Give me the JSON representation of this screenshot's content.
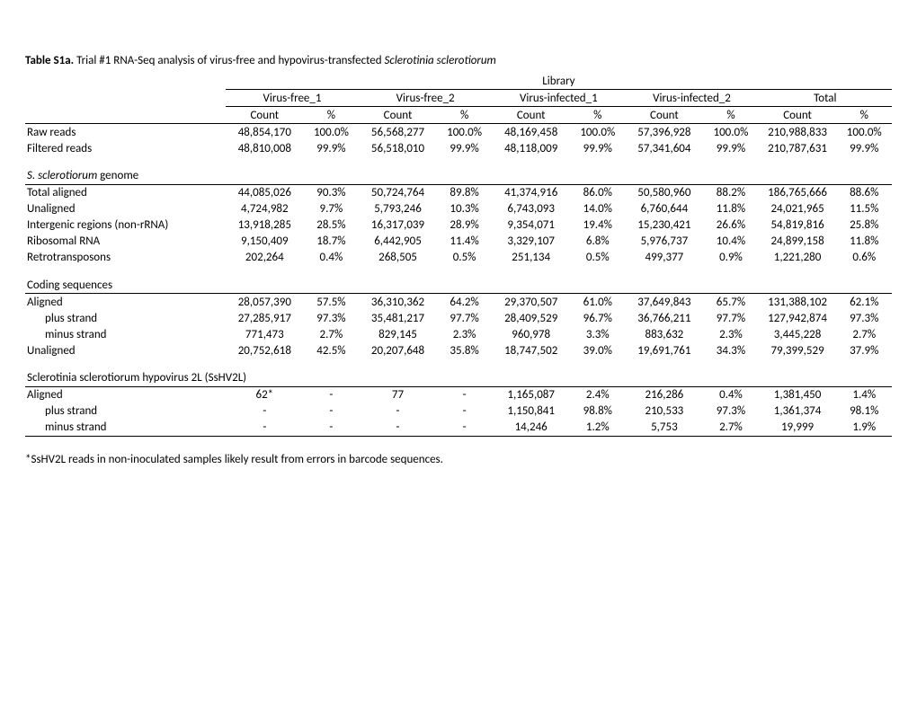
{
  "title": {
    "bold": "Table S1a.",
    "rest_before_italic": " Trial #1 RNA-Seq analysis of virus-free and hypovirus-transfected ",
    "italic": "Sclerotinia sclerotiorum"
  },
  "headers": {
    "library": "Library",
    "groups": [
      "Virus-free_1",
      "Virus-free_2",
      "Virus-infected_1",
      "Virus-infected_2",
      "Total"
    ],
    "sub": {
      "count": "Count",
      "pct": "%"
    }
  },
  "rows": {
    "raw_reads": {
      "label": "Raw reads",
      "c": [
        "48,854,170",
        "100.0%",
        "56,568,277",
        "100.0%",
        "48,169,458",
        "100.0%",
        "57,396,928",
        "100.0%",
        "210,988,833",
        "100.0%"
      ]
    },
    "filtered_reads": {
      "label": "Filtered reads",
      "c": [
        "48,810,008",
        "99.9%",
        "56,518,010",
        "99.9%",
        "48,118,009",
        "99.9%",
        "57,341,604",
        "99.9%",
        "210,787,631",
        "99.9%"
      ]
    },
    "sec_genome": {
      "label_prefix": "S. sclerotiorum",
      "label_suffix": " genome"
    },
    "total_aligned": {
      "label": "Total aligned",
      "c": [
        "44,085,026",
        "90.3%",
        "50,724,764",
        "89.8%",
        "41,374,916",
        "86.0%",
        "50,580,960",
        "88.2%",
        "186,765,666",
        "88.6%"
      ]
    },
    "unaligned1": {
      "label": "Unaligned",
      "c": [
        "4,724,982",
        "9.7%",
        "5,793,246",
        "10.3%",
        "6,743,093",
        "14.0%",
        "6,760,644",
        "11.8%",
        "24,021,965",
        "11.5%"
      ]
    },
    "intergenic": {
      "label": "Intergenic regions  (non-rRNA)",
      "c": [
        "13,918,285",
        "28.5%",
        "16,317,039",
        "28.9%",
        "9,354,071",
        "19.4%",
        "15,230,421",
        "26.6%",
        "54,819,816",
        "25.8%"
      ]
    },
    "rrna": {
      "label": "Ribosomal RNA",
      "c": [
        "9,150,409",
        "18.7%",
        "6,442,905",
        "11.4%",
        "3,329,107",
        "6.8%",
        "5,976,737",
        "10.4%",
        "24,899,158",
        "11.8%"
      ]
    },
    "retro": {
      "label": "Retrotransposons",
      "c": [
        "202,264",
        "0.4%",
        "268,505",
        "0.5%",
        "251,134",
        "0.5%",
        "499,377",
        "0.9%",
        "1,221,280",
        "0.6%"
      ]
    },
    "sec_coding": {
      "label": "Coding sequences"
    },
    "aligned_cds": {
      "label": "Aligned",
      "c": [
        "28,057,390",
        "57.5%",
        "36,310,362",
        "64.2%",
        "29,370,507",
        "61.0%",
        "37,649,843",
        "65.7%",
        "131,388,102",
        "62.1%"
      ]
    },
    "plus1": {
      "label": "plus strand",
      "c": [
        "27,285,917",
        "97.3%",
        "35,481,217",
        "97.7%",
        "28,409,529",
        "96.7%",
        "36,766,211",
        "97.7%",
        "127,942,874",
        "97.3%"
      ]
    },
    "minus1": {
      "label": "minus strand",
      "c": [
        "771,473",
        "2.7%",
        "829,145",
        "2.3%",
        "960,978",
        "3.3%",
        "883,632",
        "2.3%",
        "3,445,228",
        "2.7%"
      ]
    },
    "unaligned2": {
      "label": "Unaligned",
      "c": [
        "20,752,618",
        "42.5%",
        "20,207,648",
        "35.8%",
        "18,747,502",
        "39.0%",
        "19,691,761",
        "34.3%",
        "79,399,529",
        "37.9%"
      ]
    },
    "sec_hypo": {
      "label": "Sclerotinia sclerotiorum hypovirus 2L (SsHV2L)"
    },
    "aligned_hv": {
      "label": "Aligned",
      "c": [
        "62*",
        "-",
        "77",
        "-",
        "1,165,087",
        "2.4%",
        "216,286",
        "0.4%",
        "1,381,450",
        "1.4%"
      ]
    },
    "plus2": {
      "label": "plus strand",
      "c": [
        "-",
        "-",
        "-",
        "-",
        "1,150,841",
        "98.8%",
        "210,533",
        "97.3%",
        "1,361,374",
        "98.1%"
      ]
    },
    "minus2": {
      "label": "minus strand",
      "c": [
        "-",
        "-",
        "-",
        "-",
        "14,246",
        "1.2%",
        "5,753",
        "2.7%",
        "19,999",
        "1.9%"
      ]
    }
  },
  "footnote": "*SsHV2L reads in non-inoculated samples likely result from errors in barcode sequences.",
  "style": {
    "font_family": "Calibri",
    "font_size_pt": 10,
    "text_color": "#000000",
    "background_color": "#ffffff",
    "border_color": "#000000"
  }
}
